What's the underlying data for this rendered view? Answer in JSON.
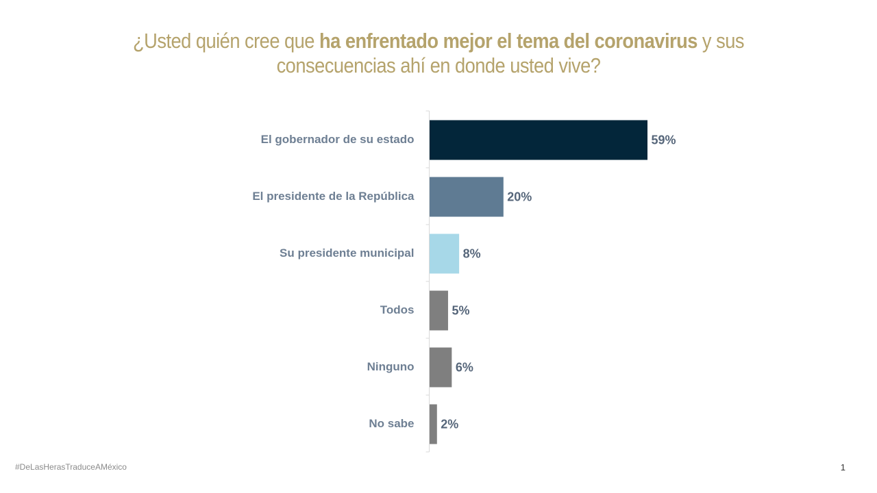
{
  "title": {
    "prefix": "¿Usted quién cree que ",
    "emphasis": "ha enfrentado mejor el tema del coronavirus",
    "suffix_line1": " y sus",
    "line2": "consecuencias ahí en donde usted vive?"
  },
  "footer": {
    "hashtag": "#DeLasHerasTraduceAMéxico",
    "page_number": "1"
  },
  "chart_data": {
    "type": "bar",
    "orientation": "horizontal",
    "title": "¿Usted quién cree que ha enfrentado mejor el tema del coronavirus y sus consecuencias ahí en donde usted vive?",
    "xlabel": "",
    "ylabel": "",
    "unit": "%",
    "xlim": [
      0,
      60
    ],
    "grid": false,
    "categories": [
      "El gobernador de su estado",
      "El presidente de la República",
      "Su presidente municipal",
      "Todos",
      "Ninguno",
      "No sabe"
    ],
    "values": [
      59,
      20,
      8,
      5,
      6,
      2
    ],
    "value_labels": [
      "59%",
      "20%",
      "8%",
      "5%",
      "6%",
      "2%"
    ],
    "colors": [
      "#03263a",
      "#5f7b93",
      "#a7d8e8",
      "#7f7f7f",
      "#7f7f7f",
      "#7f7f7f"
    ]
  }
}
